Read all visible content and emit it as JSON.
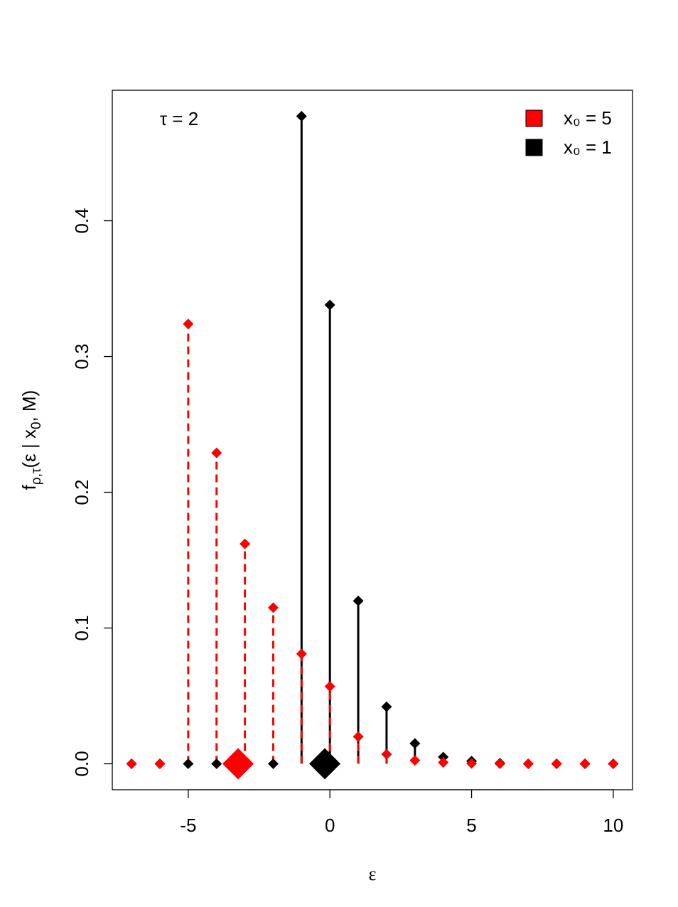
{
  "chart_data": {
    "type": "stem",
    "annotation": "τ = 2",
    "xlabel": "ε",
    "ylabel": [
      {
        "text": "f"
      },
      {
        "text": "ρ,τ",
        "sub": true
      },
      {
        "text": "(ε | x"
      },
      {
        "text": "0",
        "sub": true
      },
      {
        "text": ", M)"
      }
    ],
    "x": [
      -7,
      -6,
      -5,
      -4,
      -3,
      -2,
      -1,
      0,
      1,
      2,
      3,
      4,
      5,
      6,
      7,
      8,
      9,
      10
    ],
    "series": [
      {
        "name": "x₀ = 1",
        "color": "#000000",
        "dash": false,
        "mean": -0.18,
        "values": [
          0,
          0,
          0,
          0,
          0,
          0,
          0.477,
          0.338,
          0.12,
          0.042,
          0.015,
          0.005,
          0.002,
          0.0005,
          0,
          0,
          0,
          0
        ]
      },
      {
        "name": "x₀ = 5",
        "color": "#ff0000",
        "dash": true,
        "mean": -3.24,
        "values": [
          0,
          0,
          0.324,
          0.229,
          0.162,
          0.115,
          0.081,
          0.057,
          0.02,
          0.007,
          0.0025,
          0.001,
          0.0003,
          0,
          0,
          0,
          0,
          0
        ]
      }
    ],
    "legend_order": [
      1,
      0
    ],
    "legend": "topright",
    "xlim": [
      -7.68,
      10.68
    ],
    "ylim": [
      -0.0191,
      0.4961
    ],
    "xticks": [
      -5,
      0,
      5,
      10
    ],
    "yticks": [
      {
        "value": 0,
        "label": "0.0"
      },
      0.1,
      0.2,
      0.3,
      0.4
    ]
  }
}
